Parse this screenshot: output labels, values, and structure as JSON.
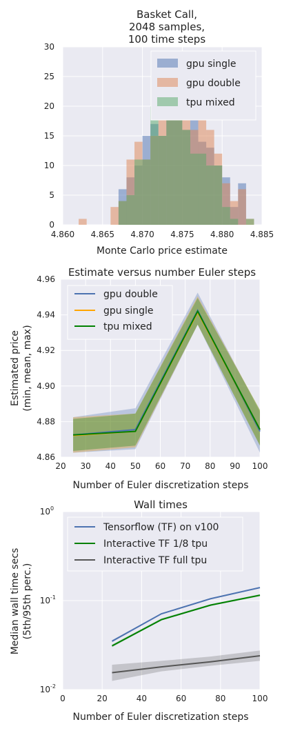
{
  "chart_data": [
    {
      "type": "histogram",
      "title_lines": [
        "Basket Call,",
        "2048 samples,",
        "100 time steps"
      ],
      "xlabel": "Monte Carlo price estimate",
      "ylabel": "",
      "xlim": [
        4.86,
        4.885
      ],
      "ylim": [
        0,
        30
      ],
      "xticks": [
        "4.860",
        "4.865",
        "4.870",
        "4.875",
        "4.880",
        "4.885"
      ],
      "yticks": [
        "0",
        "5",
        "10",
        "15",
        "20",
        "25",
        "30"
      ],
      "legend_position": "top-right",
      "grid": true,
      "bins": [
        4.8675,
        4.8685,
        4.8695,
        4.8705,
        4.8715,
        4.8725,
        4.8735,
        4.8745,
        4.8755,
        4.8765,
        4.8775,
        4.8785,
        4.8795,
        4.8805,
        4.8815,
        4.8825,
        4.8835,
        4.8845
      ],
      "series": [
        {
          "name": "gpu single",
          "color": "#4c72b0",
          "bins": [
            4.8675,
            4.8685,
            4.8695,
            4.8705,
            4.8715,
            4.8725,
            4.8735,
            4.8745,
            4.8755,
            4.8765,
            4.8775,
            4.8785,
            4.8795,
            4.8805,
            4.8815,
            4.8825
          ],
          "counts": [
            6,
            8,
            10,
            15,
            17,
            15,
            18,
            20,
            16,
            20,
            14,
            13,
            10,
            8,
            3,
            7
          ]
        },
        {
          "name": "gpu double",
          "color": "#dd8452",
          "bins": [
            4.8625,
            4.8635,
            4.8645,
            4.8655,
            4.8665,
            4.8675,
            4.8685,
            4.8695,
            4.8705,
            4.8715,
            4.8725,
            4.8735,
            4.8745,
            4.8755,
            4.8765,
            4.8775,
            4.8785,
            4.8795,
            4.8805,
            4.8815,
            4.8825,
            4.8835
          ],
          "counts": [
            1,
            0,
            0,
            0,
            3,
            4,
            11,
            14,
            11,
            15,
            20,
            18,
            21,
            24,
            16,
            20,
            16,
            12,
            7,
            4,
            6,
            1
          ]
        },
        {
          "name": "tpu mixed",
          "color": "#55a868",
          "bins": [
            4.8665,
            4.8675,
            4.8685,
            4.8695,
            4.8705,
            4.8715,
            4.8725,
            4.8735,
            4.8745,
            4.8755,
            4.8765,
            4.8775,
            4.8785,
            4.8795,
            4.8805,
            4.8815,
            4.8825,
            4.8835,
            4.8845
          ],
          "counts": [
            0,
            4,
            5,
            11,
            11,
            20,
            15,
            20,
            20,
            16,
            12,
            12,
            10,
            10,
            3,
            1,
            0,
            1,
            0
          ]
        }
      ]
    },
    {
      "type": "line",
      "title": "Estimate versus number Euler steps",
      "xlabel": "Number of Euler discretization steps",
      "ylabel_lines": [
        "Estimated price",
        "(min, mean, max)"
      ],
      "xlim": [
        20,
        100
      ],
      "ylim": [
        4.86,
        4.96
      ],
      "xticks": [
        "20",
        "30",
        "40",
        "50",
        "60",
        "70",
        "80",
        "90",
        "100"
      ],
      "yticks": [
        "4.86",
        "4.88",
        "4.90",
        "4.92",
        "4.94",
        "4.96"
      ],
      "legend_position": "top-left",
      "grid": true,
      "x": [
        25,
        50,
        75,
        100
      ],
      "series": [
        {
          "name": "gpu double",
          "color": "#4c72b0",
          "mean": [
            4.8725,
            4.8755,
            4.9425,
            4.8745
          ],
          "min": [
            4.8625,
            4.8645,
            4.9345,
            4.8625
          ],
          "max": [
            4.8825,
            4.8875,
            4.9525,
            4.8855
          ]
        },
        {
          "name": "gpu single",
          "color": "#ffa500",
          "mean": [
            4.8722,
            4.8745,
            4.9415,
            4.8755
          ],
          "min": [
            4.8625,
            4.8655,
            4.9345,
            4.8665
          ],
          "max": [
            4.8825,
            4.8845,
            4.9505,
            4.8865
          ]
        },
        {
          "name": "tpu mixed",
          "color": "#008000",
          "mean": [
            4.8725,
            4.8745,
            4.942,
            4.8755
          ],
          "min": [
            4.8635,
            4.8665,
            4.9345,
            4.8665
          ],
          "max": [
            4.8815,
            4.8845,
            4.9495,
            4.8865
          ]
        }
      ]
    },
    {
      "type": "line",
      "title": "Wall times",
      "xlabel": "Number of Euler discretization steps",
      "ylabel_lines": [
        "Median wall time secs",
        "(5th/95th perc.)"
      ],
      "xlim": [
        0,
        100
      ],
      "ylim": [
        0.01,
        1
      ],
      "yscale": "log",
      "xticks": [
        "0",
        "20",
        "40",
        "60",
        "80",
        "100"
      ],
      "yticks": [
        {
          "value": 0.01,
          "base": "10",
          "exp": "-2"
        },
        {
          "value": 0.1,
          "base": "10",
          "exp": "-1"
        },
        {
          "value": 1,
          "base": "10",
          "exp": "0"
        }
      ],
      "legend_position": "top-left",
      "grid": true,
      "x": [
        25,
        50,
        75,
        100
      ],
      "series": [
        {
          "name": "Tensorflow (TF) on v100",
          "color": "#4c72b0",
          "median": [
            0.035,
            0.071,
            0.105,
            0.14
          ],
          "p5": [
            0.034,
            0.07,
            0.104,
            0.138
          ],
          "p95": [
            0.036,
            0.072,
            0.106,
            0.142
          ]
        },
        {
          "name": "Interactive TF 1/8 tpu",
          "color": "#008000",
          "median": [
            0.031,
            0.061,
            0.089,
            0.115
          ],
          "p5": [
            0.03,
            0.06,
            0.087,
            0.112
          ],
          "p95": [
            0.032,
            0.063,
            0.091,
            0.118
          ]
        },
        {
          "name": "Interactive TF full tpu",
          "color": "#555555",
          "median": [
            0.0155,
            0.018,
            0.0205,
            0.024
          ],
          "p5": [
            0.0125,
            0.016,
            0.0185,
            0.021
          ],
          "p95": [
            0.019,
            0.021,
            0.0235,
            0.0275
          ]
        }
      ]
    }
  ]
}
